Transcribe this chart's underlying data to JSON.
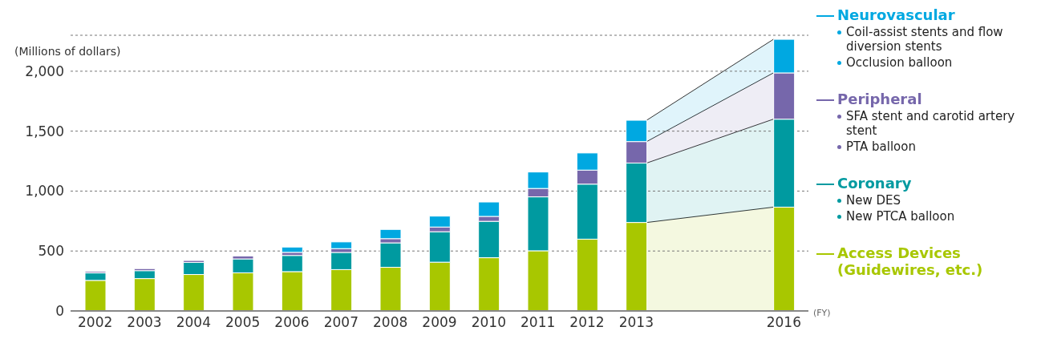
{
  "chart_data": {
    "type": "bar",
    "stacked": true,
    "ylabel": "(Millions of dollars)",
    "xlabel": "(FY)",
    "categories": [
      "2002",
      "2003",
      "2004",
      "2005",
      "2006",
      "2007",
      "2008",
      "2009",
      "2010",
      "2011",
      "2012",
      "2013",
      null,
      null,
      "2016"
    ],
    "series": [
      {
        "name": "Access Devices (Guidewires, etc.)",
        "color": "#a8c700",
        "values": [
          255,
          270,
          304,
          318,
          328,
          345,
          364,
          407,
          444,
          502,
          599,
          738,
          null,
          null,
          866
        ]
      },
      {
        "name": "Coronary",
        "color": "#009aa0",
        "values": [
          62,
          66,
          101,
          116,
          135,
          143,
          204,
          254,
          304,
          450,
          459,
          496,
          null,
          null,
          734
        ]
      },
      {
        "name": "Peripheral",
        "color": "#7667ab",
        "values": [
          12,
          17,
          16,
          24,
          26,
          32,
          35,
          39,
          41,
          70,
          117,
          179,
          null,
          null,
          386
        ]
      },
      {
        "name": "Neurovascular",
        "color": "#00a8e1",
        "values": [
          0,
          0,
          0,
          0,
          44,
          56,
          77,
          91,
          120,
          137,
          143,
          178,
          null,
          null,
          280
        ]
      }
    ],
    "annotations": [
      "Coil-assist stents and flow diversion stents",
      "Occlusion balloon",
      "SFA stent and carotid artery stent",
      "PTA balloon",
      "New DES",
      "New PTCA balloon"
    ],
    "ylim": [
      0,
      2300
    ],
    "yticks": [
      0,
      500,
      {
        "value": 1000,
        "label": "1,000"
      },
      {
        "value": 1500,
        "label": "1,500"
      },
      {
        "value": 2000,
        "label": "2,000"
      }
    ],
    "grid": "y",
    "legend": "right"
  }
}
